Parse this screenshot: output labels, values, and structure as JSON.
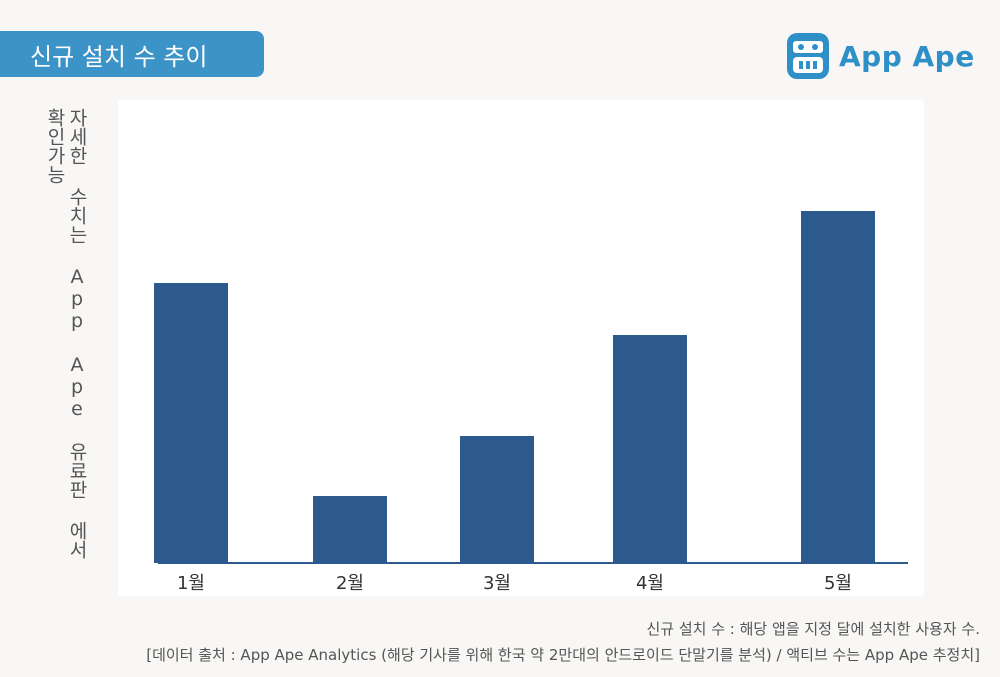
{
  "header": {
    "title": "신규 설치 수 추이"
  },
  "logo": {
    "text": "App Ape",
    "icon": "ape-face-icon"
  },
  "colors": {
    "bar": "#2d5a8e",
    "accent": "#3b93c8",
    "axis": "#2d5a8e"
  },
  "chart_data": {
    "type": "bar",
    "categories": [
      "1월",
      "2월",
      "3월",
      "4월",
      "5월"
    ],
    "values": [
      280,
      67,
      127,
      228,
      352
    ],
    "ylabel": "자세한 수치는 App Ape 유료판 에서 확인가능",
    "ylim": [
      0,
      400
    ],
    "grid": false,
    "legend": "none"
  },
  "notes": {
    "definition": "신규 설치 수 : 해당 앱을 지정 달에 설치한 사용자 수.",
    "source": "[데이터 출처 : App Ape Analytics (해당 기사를 위해 한국 약 2만대의 안드로이드 단말기를 분석) / 액티브 수는 App Ape 추정치]"
  }
}
